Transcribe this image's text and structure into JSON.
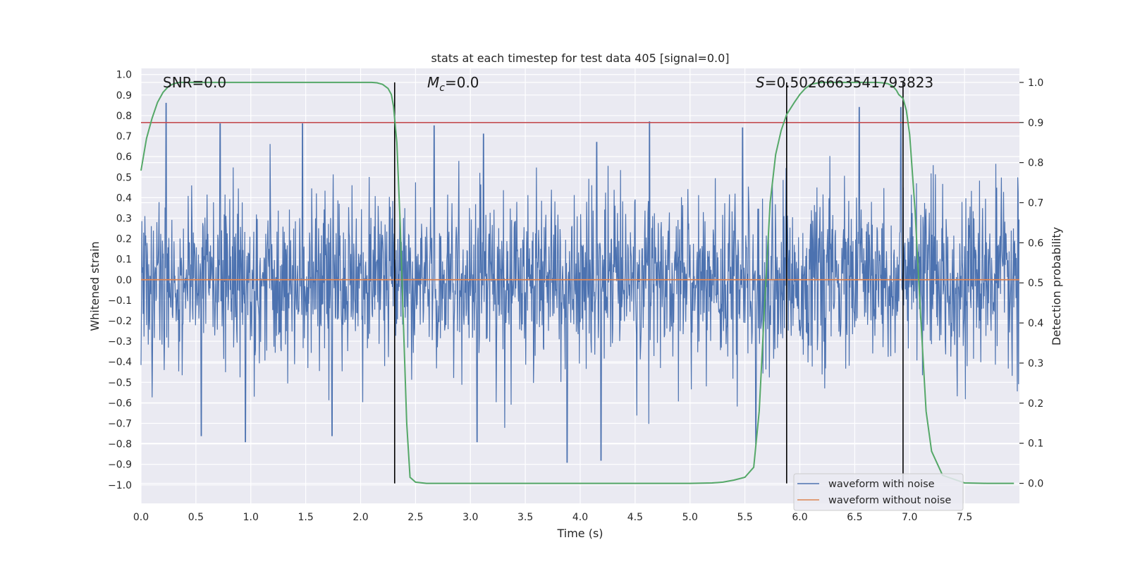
{
  "chart_data": {
    "type": "line",
    "title": "stats at each timestep for test data 405 [signal=0.0]",
    "xlabel": "Time (s)",
    "ylabel_left": "Whitened strain",
    "ylabel_right": "Detection probability",
    "xlim": [
      0.0,
      8.0
    ],
    "ylim_left": [
      -1.09,
      1.03
    ],
    "ylim_right": [
      -0.05,
      1.035
    ],
    "x_ticks": [
      "0.0",
      "0.5",
      "1.0",
      "1.5",
      "2.0",
      "2.5",
      "3.0",
      "3.5",
      "4.0",
      "4.5",
      "5.0",
      "5.5",
      "6.0",
      "6.5",
      "7.0",
      "7.5"
    ],
    "y_ticks_left": [
      "1.0",
      "0.9",
      "0.8",
      "0.7",
      "0.6",
      "0.5",
      "0.4",
      "0.3",
      "0.2",
      "0.1",
      "0.0",
      "−0.1",
      "−0.2",
      "−0.3",
      "−0.4",
      "−0.5",
      "−0.6",
      "−0.7",
      "−0.8",
      "−0.9",
      "−1.0"
    ],
    "y_ticks_right": [
      "0.0",
      "0.1",
      "0.2",
      "0.3",
      "0.4",
      "0.5",
      "0.6",
      "0.7",
      "0.8",
      "0.9",
      "1.0"
    ],
    "grid": true,
    "annotations": {
      "snr": "SNR=0.0",
      "mc_symbol": "M",
      "mc_sub": "c",
      "mc_value": "=0.0",
      "s_symbol": "S",
      "s_value": "=0.5026663541793823"
    },
    "threshold_line": {
      "axis": "right",
      "value": 0.9
    },
    "vertical_lines": [
      2.31,
      5.88,
      6.94
    ],
    "series": [
      {
        "name": "waveform with noise",
        "axis": "left",
        "color": "#4c72b0",
        "description_of_shape": "dense whitened noise, mostly within ±0.5, peaks up to ~0.87 and down to ~-0.9",
        "envelope_peaks_up": [
          [
            0.23,
            0.86
          ],
          [
            0.72,
            0.76
          ],
          [
            1.47,
            0.76
          ],
          [
            2.67,
            0.75
          ],
          [
            3.12,
            0.71
          ],
          [
            4.15,
            0.67
          ],
          [
            4.63,
            0.77
          ],
          [
            5.48,
            0.74
          ],
          [
            6.54,
            0.84
          ],
          [
            6.92,
            0.84
          ]
        ],
        "envelope_peaks_down": [
          [
            0.55,
            -0.76
          ],
          [
            0.95,
            -0.79
          ],
          [
            1.74,
            -0.76
          ],
          [
            3.06,
            -0.79
          ],
          [
            3.88,
            -0.89
          ],
          [
            4.19,
            -0.88
          ],
          [
            5.6,
            -0.8
          ]
        ],
        "sample_count": 2048
      },
      {
        "name": "waveform without noise",
        "axis": "left",
        "color": "#dd8452",
        "x": [
          0.0,
          8.0
        ],
        "y": [
          0.0,
          0.0
        ]
      },
      {
        "name": "detection probability",
        "axis": "right",
        "color": "#55a868",
        "x": [
          0.0,
          0.05,
          0.1,
          0.15,
          0.2,
          0.25,
          0.3,
          0.35,
          0.4,
          0.5,
          1.0,
          1.5,
          2.0,
          2.1,
          2.15,
          2.2,
          2.25,
          2.28,
          2.3,
          2.33,
          2.36,
          2.39,
          2.42,
          2.45,
          2.5,
          2.6,
          3.0,
          4.0,
          5.0,
          5.2,
          5.3,
          5.4,
          5.5,
          5.58,
          5.63,
          5.68,
          5.73,
          5.78,
          5.83,
          5.88,
          5.95,
          6.0,
          6.05,
          6.1,
          6.15,
          6.2,
          6.25,
          6.3,
          6.5,
          6.6,
          6.7,
          6.75,
          6.8,
          6.85,
          6.88,
          6.9,
          6.94,
          6.97,
          7.0,
          7.05,
          7.1,
          7.15,
          7.2,
          7.3,
          7.5,
          7.7,
          7.9,
          7.95
        ],
        "y": [
          0.78,
          0.86,
          0.91,
          0.95,
          0.975,
          0.99,
          0.997,
          1.0,
          1.0,
          1.0,
          1.0,
          1.0,
          1.0,
          1.0,
          0.999,
          0.995,
          0.985,
          0.97,
          0.94,
          0.85,
          0.65,
          0.4,
          0.15,
          0.015,
          0.003,
          0.0,
          0.0,
          0.0,
          0.0,
          0.001,
          0.003,
          0.008,
          0.015,
          0.04,
          0.18,
          0.45,
          0.7,
          0.82,
          0.88,
          0.92,
          0.95,
          0.97,
          0.985,
          0.995,
          0.998,
          1.0,
          1.0,
          1.0,
          1.0,
          1.0,
          1.0,
          0.999,
          0.997,
          0.99,
          0.98,
          0.97,
          0.96,
          0.93,
          0.87,
          0.68,
          0.42,
          0.18,
          0.08,
          0.02,
          0.001,
          0.0,
          0.0,
          0.0
        ]
      }
    ],
    "legend": {
      "placement": "lower-right",
      "entries": [
        {
          "label": "waveform with noise",
          "color": "#4c72b0"
        },
        {
          "label": "waveform without noise",
          "color": "#dd8452"
        }
      ]
    },
    "colors": {
      "plot_bg": "#eaeaf2",
      "grid": "#ffffff",
      "threshold": "#c44e52",
      "vline": "#000000"
    }
  }
}
